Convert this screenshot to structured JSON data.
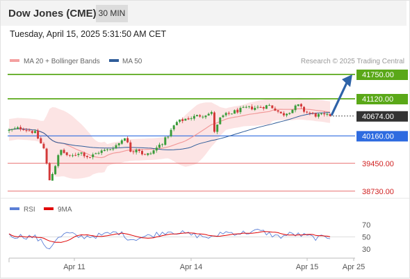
{
  "header": {
    "title": "Dow Jones (CME)",
    "timeframe": "30 MIN",
    "datetime": "Tuesday, April 15, 2025 5:31:50 AM CET"
  },
  "legend": {
    "items": [
      {
        "label": "MA 20 + Bollinger Bands",
        "color": "#f4a0a0"
      },
      {
        "label": "MA 50",
        "color": "#2f5d9a"
      }
    ],
    "credit": "Research © 2025 Trading Central"
  },
  "levels": [
    {
      "value": 41750,
      "label": "41750.00",
      "kind": "target",
      "color": "#5aa818"
    },
    {
      "value": 41120,
      "label": "41120.00",
      "kind": "resistance",
      "color": "#5aa818"
    },
    {
      "value": 40674,
      "label": "40674.00",
      "kind": "current",
      "color": "#333333"
    },
    {
      "value": 40160,
      "label": "40160.00",
      "kind": "pivot",
      "color": "#2e6be0"
    },
    {
      "value": 39450,
      "label": "39450.00",
      "kind": "support",
      "color": "#e04040"
    },
    {
      "value": 38730,
      "label": "38730.00",
      "kind": "support",
      "color": "#e04040"
    }
  ],
  "rsi_legend": {
    "items": [
      {
        "label": "RSI",
        "color": "#5b7fd6"
      },
      {
        "label": "9MA",
        "color": "#e00000"
      }
    ]
  },
  "chart_data": {
    "type": "candlestick",
    "x_ticks": [
      "Apr 11",
      "Apr 14",
      "Apr 15",
      "Apr 25"
    ],
    "rsi_ticks": [
      70,
      50,
      30
    ],
    "seed": 12345,
    "close_path": [
      [
        0,
        40300
      ],
      [
        0.04,
        40370
      ],
      [
        0.08,
        40250
      ],
      [
        0.11,
        39800
      ],
      [
        0.125,
        39000
      ],
      [
        0.14,
        39300
      ],
      [
        0.16,
        39800
      ],
      [
        0.19,
        39600
      ],
      [
        0.22,
        39750
      ],
      [
        0.25,
        39600
      ],
      [
        0.28,
        39750
      ],
      [
        0.31,
        39800
      ],
      [
        0.34,
        39950
      ],
      [
        0.36,
        40150
      ],
      [
        0.38,
        39750
      ],
      [
        0.4,
        39850
      ],
      [
        0.42,
        39650
      ],
      [
        0.44,
        39700
      ],
      [
        0.46,
        39850
      ],
      [
        0.49,
        40100
      ],
      [
        0.52,
        40500
      ],
      [
        0.55,
        40600
      ],
      [
        0.6,
        40700
      ],
      [
        0.635,
        40750
      ],
      [
        0.64,
        40250
      ],
      [
        0.66,
        40650
      ],
      [
        0.7,
        40780
      ],
      [
        0.74,
        40880
      ],
      [
        0.78,
        40900
      ],
      [
        0.81,
        40950
      ],
      [
        0.83,
        40850
      ],
      [
        0.85,
        40700
      ],
      [
        0.88,
        40830
      ],
      [
        0.9,
        40950
      ],
      [
        0.92,
        40800
      ],
      [
        0.95,
        40700
      ],
      [
        1.0,
        40674
      ]
    ],
    "rsi_path": [
      [
        0,
        52
      ],
      [
        0.08,
        50
      ],
      [
        0.11,
        38
      ],
      [
        0.125,
        30
      ],
      [
        0.14,
        43
      ],
      [
        0.18,
        56
      ],
      [
        0.22,
        50
      ],
      [
        0.28,
        52
      ],
      [
        0.34,
        58
      ],
      [
        0.38,
        46
      ],
      [
        0.44,
        52
      ],
      [
        0.5,
        60
      ],
      [
        0.55,
        55
      ],
      [
        0.64,
        48
      ],
      [
        0.66,
        58
      ],
      [
        0.72,
        56
      ],
      [
        0.78,
        60
      ],
      [
        0.84,
        50
      ],
      [
        0.88,
        55
      ],
      [
        0.92,
        52
      ],
      [
        0.96,
        48
      ],
      [
        1.0,
        50
      ]
    ],
    "projection": {
      "from": 40674,
      "to": 41750
    }
  },
  "colors": {
    "bull": "#3a9c3a",
    "bear": "#d33a3a",
    "band_fill": "#fbd9d9",
    "ma20": "#f29a9a",
    "ma50": "#2f5d9a",
    "arrow": "#2e63a8",
    "rsi": "#5b7fd6",
    "rsi_ma": "#e00000"
  }
}
